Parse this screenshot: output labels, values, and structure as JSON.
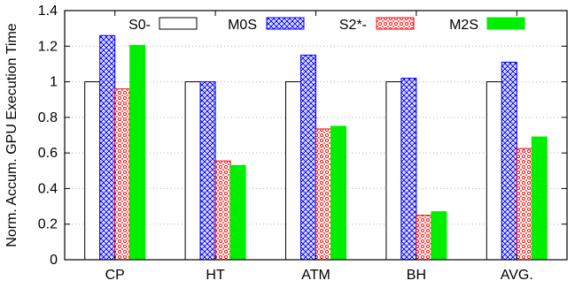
{
  "chart_data": {
    "type": "bar",
    "title": "",
    "xlabel": "",
    "ylabel": "Norm. Accum. GPU Execution Time",
    "ylim": [
      0,
      1.4
    ],
    "yticks": [
      "0",
      "0.2",
      "0.4",
      "0.6",
      "0.8",
      "1",
      "1.2",
      "1.4"
    ],
    "grid": "horizontal dotted",
    "legend_placement": "top",
    "categories": [
      "CP",
      "HT",
      "ATM",
      "BH",
      "AVG."
    ],
    "series": [
      {
        "name": "S0-",
        "values": [
          1.0,
          1.0,
          1.0,
          1.0,
          1.0
        ],
        "pattern": "none",
        "color": "#000000"
      },
      {
        "name": "M0S",
        "values": [
          1.26,
          1.0,
          1.15,
          1.02,
          1.11
        ],
        "pattern": "crosshatch",
        "color": "#0000ff"
      },
      {
        "name": "S2*-",
        "values": [
          0.96,
          0.555,
          0.735,
          0.25,
          0.625
        ],
        "pattern": "dots",
        "color": "#ff0000"
      },
      {
        "name": "M2S",
        "values": [
          1.205,
          0.53,
          0.75,
          0.27,
          0.69
        ],
        "pattern": "solid",
        "color": "#00ee00"
      }
    ]
  }
}
